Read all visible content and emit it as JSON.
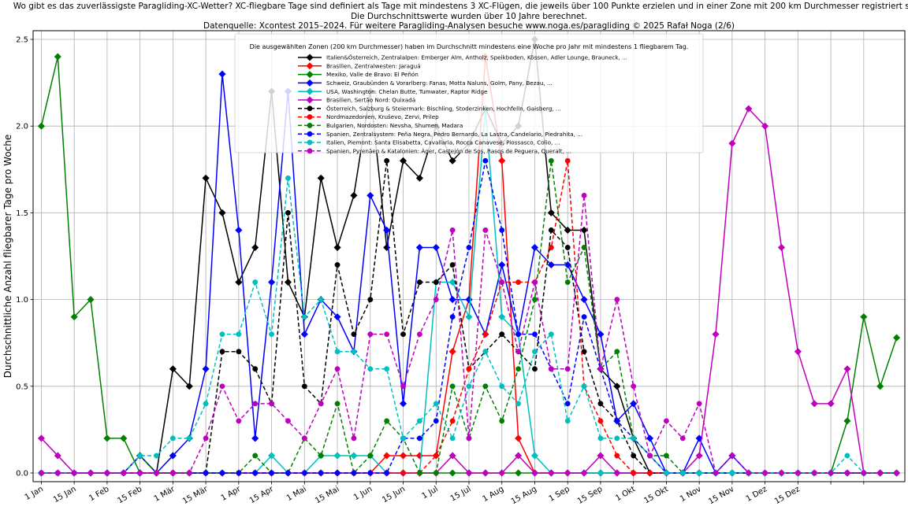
{
  "title_lines": [
    "Wo gibt es das zuverlässigste Paragliding-XC-Wetter? XC-fliegbare Tage sind definiert als Tage mit mindestens 3 XC-Flügen, die jeweils über 100 Punkte erzielen und in einer Zone mit 200 km Durchmesser registriert sind.",
    "Die Durchschnittswerte wurden über 10 Jahre berechnet.",
    "Datenquelle: Xcontest 2015–2024. Für weitere Paragliding-Analysen besuche www.noga.es/paragliding © 2025 Rafał Noga (2/6)"
  ],
  "chart_data": {
    "type": "line",
    "ylabel": "Durchschnittliche Anzahl fliegbarer Tage pro Woche",
    "xlabel": "",
    "ylim": [
      -0.05,
      2.55
    ],
    "xlim": [
      -0.5,
      52.5
    ],
    "yticks": [
      0.0,
      0.5,
      1.0,
      1.5,
      2.0,
      2.5
    ],
    "ytick_labels": [
      "0.0",
      "0.5",
      "1.0",
      "1.5",
      "2.0",
      "2.5"
    ],
    "xticks": [
      0,
      2,
      4,
      6,
      8,
      10,
      12,
      14,
      16,
      18,
      20,
      22,
      24,
      26,
      28,
      30,
      32,
      34,
      36,
      38,
      40,
      42,
      44,
      46,
      48,
      50
    ],
    "xtick_labels": [
      "1 Jan",
      "15 Jan",
      "1 Feb",
      "15 Feb",
      "1 Mär",
      "15 Mär",
      "1 Apr",
      "15 Apr",
      "1 Mai",
      "15 Mai",
      "1 Jun",
      "15 Jun",
      "1 Jul",
      "15 Jul",
      "1 Aug",
      "15 Aug",
      "1 Sep",
      "15 Sep",
      "1 Okt",
      "15 Okt",
      "1 Nov",
      "15 Nov",
      "1 Dez",
      "15 Dez"
    ],
    "grid": true,
    "legend": {
      "placement": "top-center",
      "title": "Die ausgewählten Zonen (200 km Durchmesser) haben im Durchschnitt mindestens eine Woche pro Jahr mit mindestens 1 fliegbarem Tag."
    },
    "x": [
      0,
      1,
      2,
      3,
      4,
      5,
      6,
      7,
      8,
      9,
      10,
      11,
      12,
      13,
      14,
      15,
      16,
      17,
      18,
      19,
      20,
      21,
      22,
      23,
      24,
      25,
      26,
      27,
      28,
      29,
      30,
      31,
      32,
      33,
      34,
      35,
      36,
      37,
      38,
      39,
      40,
      41,
      42,
      43,
      44,
      45,
      46,
      47,
      48,
      49,
      50,
      51,
      52
    ],
    "series": [
      {
        "name": "Italien&Österreich, Zentralalpen: Emberger Alm, Antholz, Speikboden, Kössen, Adler Lounge, Brauneck, ...",
        "color": "#000000",
        "dash": "solid",
        "marker": "diamond",
        "values": [
          0,
          0,
          0,
          0,
          0,
          0,
          0.1,
          0,
          0.6,
          0.5,
          1.7,
          1.5,
          1.1,
          1.3,
          2.2,
          1.1,
          0.9,
          1.7,
          1.3,
          1.6,
          2.2,
          1.3,
          1.8,
          1.7,
          2.0,
          1.8,
          1.9,
          2.1,
          1.9,
          2.0,
          2.5,
          1.5,
          1.4,
          1.4,
          0.6,
          0.5,
          0.2,
          0,
          0,
          0,
          0,
          0,
          0,
          0,
          0,
          0,
          0,
          0,
          0,
          0,
          0,
          0,
          0
        ]
      },
      {
        "name": "Brasilien, Zentralwesten: Jaraguá",
        "color": "#ff0000",
        "dash": "solid",
        "marker": "diamond",
        "values": [
          0,
          0,
          0,
          0,
          0,
          0,
          0,
          0,
          0,
          0,
          0,
          0,
          0,
          0,
          0,
          0,
          0,
          0,
          0,
          0,
          0,
          0.1,
          0.1,
          0.1,
          0.1,
          0.7,
          1.0,
          2.4,
          1.8,
          0.2,
          0,
          0,
          0,
          0,
          0,
          0,
          0,
          0,
          0,
          0,
          0,
          0,
          0,
          0,
          0,
          0,
          0,
          0,
          0,
          0,
          0,
          0,
          0
        ]
      },
      {
        "name": "Mexiko, Valle de Bravo: El Peñón",
        "color": "#008000",
        "dash": "solid",
        "marker": "diamond",
        "values": [
          2.0,
          2.4,
          0.9,
          1.0,
          0.2,
          0.2,
          0,
          0,
          0,
          0,
          0,
          0,
          0,
          0,
          0,
          0,
          0,
          0,
          0,
          0,
          0,
          0,
          0,
          0,
          0,
          0,
          0,
          0,
          0,
          0,
          0,
          0,
          0,
          0,
          0,
          0,
          0,
          0,
          0,
          0,
          0,
          0,
          0,
          0,
          0,
          0,
          0,
          0,
          0,
          0.3,
          0.9,
          0.5,
          0.78
        ]
      },
      {
        "name": "Schweiz, Graubünden & Vorarlberg: Fanas, Motta Naluns, Golm, Pany, Bezau, ...",
        "color": "#0000ff",
        "dash": "solid",
        "marker": "diamond",
        "values": [
          0,
          0,
          0,
          0,
          0,
          0,
          0.1,
          0,
          0.1,
          0.2,
          0.6,
          2.3,
          1.4,
          0.2,
          1.1,
          2.2,
          0.8,
          1.0,
          0.9,
          0.7,
          1.6,
          1.4,
          0.4,
          1.3,
          1.3,
          1.0,
          1.0,
          0.8,
          1.2,
          0.8,
          1.3,
          1.2,
          1.2,
          1.0,
          0.8,
          0.3,
          0.4,
          0.2,
          0,
          0,
          0.2,
          0,
          0.1,
          0,
          0,
          0,
          0,
          0,
          0,
          0,
          0,
          0,
          0
        ]
      },
      {
        "name": "USA, Washington: Chelan Butte, Tumwater, Raptor Ridge",
        "color": "#00bfbf",
        "dash": "solid",
        "marker": "diamond",
        "values": [
          0,
          0,
          0,
          0,
          0,
          0,
          0,
          0,
          0,
          0,
          0,
          0,
          0,
          0,
          0.1,
          0,
          0,
          0.1,
          0.1,
          0.1,
          0.1,
          0,
          0,
          0,
          1.1,
          1.1,
          0.9,
          2.1,
          0.9,
          0.8,
          0.1,
          0,
          0,
          0,
          0,
          0,
          0,
          0,
          0,
          0,
          0,
          0,
          0,
          0,
          0,
          0,
          0,
          0,
          0,
          0,
          0,
          0,
          0
        ]
      },
      {
        "name": "Brasilien, Sertão Nord: Quixadá",
        "color": "#bf00bf",
        "dash": "solid",
        "marker": "diamond",
        "values": [
          0.2,
          0.1,
          0,
          0,
          0,
          0,
          0,
          0,
          0,
          0,
          0,
          0,
          0,
          0,
          0,
          0,
          0,
          0,
          0,
          0,
          0,
          0,
          0,
          0,
          0,
          0.1,
          0,
          0,
          0,
          0.1,
          0,
          0,
          0,
          0,
          0.1,
          0,
          0,
          0,
          0,
          0,
          0.1,
          0.8,
          1.9,
          2.1,
          2.0,
          1.3,
          0.7,
          0.4,
          0.4,
          0.6,
          0,
          0,
          0
        ]
      },
      {
        "name": "Österreich, Salzburg & Steiermark: Bischling, Stoderzinken, Hochfelln, Gaisberg, ...",
        "color": "#000000",
        "dash": "dashed",
        "marker": "circle",
        "values": [
          0,
          0,
          0,
          0,
          0,
          0,
          0,
          0,
          0,
          0,
          0,
          0.7,
          0.7,
          0.6,
          0.4,
          1.5,
          0.5,
          0.4,
          1.2,
          0.8,
          1.0,
          1.8,
          0.8,
          1.1,
          1.1,
          1.2,
          0.6,
          0.7,
          0.8,
          0.7,
          0.6,
          1.4,
          1.3,
          0.7,
          0.4,
          0.3,
          0.1,
          0,
          0,
          0,
          0,
          0,
          0,
          0,
          0,
          0,
          0,
          0,
          0,
          0,
          0,
          0,
          0
        ]
      },
      {
        "name": "Nordmazedonien, Kruševo, Zervi, Prilep",
        "color": "#ff0000",
        "dash": "dashed",
        "marker": "circle",
        "values": [
          0,
          0,
          0,
          0,
          0,
          0,
          0,
          0,
          0,
          0,
          0,
          0,
          0,
          0,
          0,
          0,
          0,
          0,
          0,
          0,
          0,
          0,
          0,
          0,
          0.1,
          0.3,
          0.6,
          0.8,
          1.1,
          1.1,
          1.1,
          1.3,
          1.8,
          0.5,
          0.3,
          0.1,
          0,
          0,
          0,
          0,
          0,
          0,
          0,
          0,
          0,
          0,
          0,
          0,
          0,
          0,
          0,
          0,
          0
        ]
      },
      {
        "name": "Bulgarien, Nordosten: Nevsha, Shumen, Madara",
        "color": "#008000",
        "dash": "dashed",
        "marker": "circle",
        "values": [
          0,
          0,
          0,
          0,
          0,
          0,
          0.1,
          0,
          0,
          0,
          0,
          0,
          0,
          0.1,
          0,
          0,
          0.2,
          0.1,
          0.4,
          0,
          0.1,
          0.3,
          0.2,
          0,
          0,
          0.5,
          0.2,
          0.5,
          0.3,
          0.6,
          1.0,
          1.8,
          1.1,
          1.3,
          0.6,
          0.7,
          0.2,
          0.1,
          0.1,
          0,
          0,
          0,
          0,
          0,
          0,
          0,
          0,
          0,
          0,
          0,
          0,
          0,
          0
        ]
      },
      {
        "name": "Spanien, Zentralsystem: Peña Negra, Pedro Bernardo, La Lastra, Candelario, Piedrahita, ...",
        "color": "#0000ff",
        "dash": "dashed",
        "marker": "circle",
        "values": [
          0,
          0,
          0,
          0,
          0,
          0,
          0,
          0,
          0,
          0,
          0,
          0,
          0,
          0,
          0,
          0,
          0,
          0,
          0,
          0,
          0,
          0,
          0.2,
          0.2,
          0.3,
          0.9,
          1.3,
          1.8,
          1.4,
          0.8,
          0.8,
          0.6,
          0.4,
          0.9,
          0.6,
          0.3,
          0.2,
          0.1,
          0,
          0,
          0,
          0,
          0,
          0,
          0,
          0,
          0,
          0,
          0,
          0,
          0,
          0,
          0
        ]
      },
      {
        "name": "Italien, Piemont: Santa Elisabetta, Cavallaria, Rocca Canavese, Piossasco, Colio, ...",
        "color": "#00bfbf",
        "dash": "dashed",
        "marker": "circle",
        "values": [
          0,
          0,
          0,
          0,
          0,
          0,
          0.1,
          0.1,
          0.2,
          0.2,
          0.4,
          0.8,
          0.8,
          1.1,
          0.8,
          1.7,
          0.9,
          1.0,
          0.7,
          0.7,
          0.6,
          0.6,
          0.2,
          0.3,
          0.4,
          0.2,
          0.5,
          0.7,
          0.5,
          0.4,
          0.7,
          0.8,
          0.3,
          0.5,
          0.2,
          0.2,
          0.2,
          0.1,
          0,
          0,
          0,
          0,
          0,
          0,
          0,
          0,
          0,
          0,
          0,
          0.1,
          0,
          0,
          0
        ]
      },
      {
        "name": "Spanien, Pyrenäen & Katalonien: Àger, Castejón de Sos, Rasos de Peguera, Queralt, ...",
        "color": "#bf00bf",
        "dash": "dashed",
        "marker": "circle",
        "values": [
          0,
          0,
          0,
          0,
          0,
          0,
          0,
          0,
          0,
          0,
          0.2,
          0.5,
          0.3,
          0.4,
          0.4,
          0.3,
          0.2,
          0.4,
          0.6,
          0.2,
          0.8,
          0.8,
          0.5,
          0.8,
          1.0,
          1.4,
          0.2,
          1.4,
          1.1,
          0.7,
          1.1,
          0.6,
          0.6,
          1.6,
          0.6,
          1.0,
          0.5,
          0.1,
          0.3,
          0.2,
          0.4,
          0,
          0.1,
          0,
          0,
          0,
          0,
          0,
          0,
          0,
          0,
          0,
          0
        ]
      }
    ]
  }
}
